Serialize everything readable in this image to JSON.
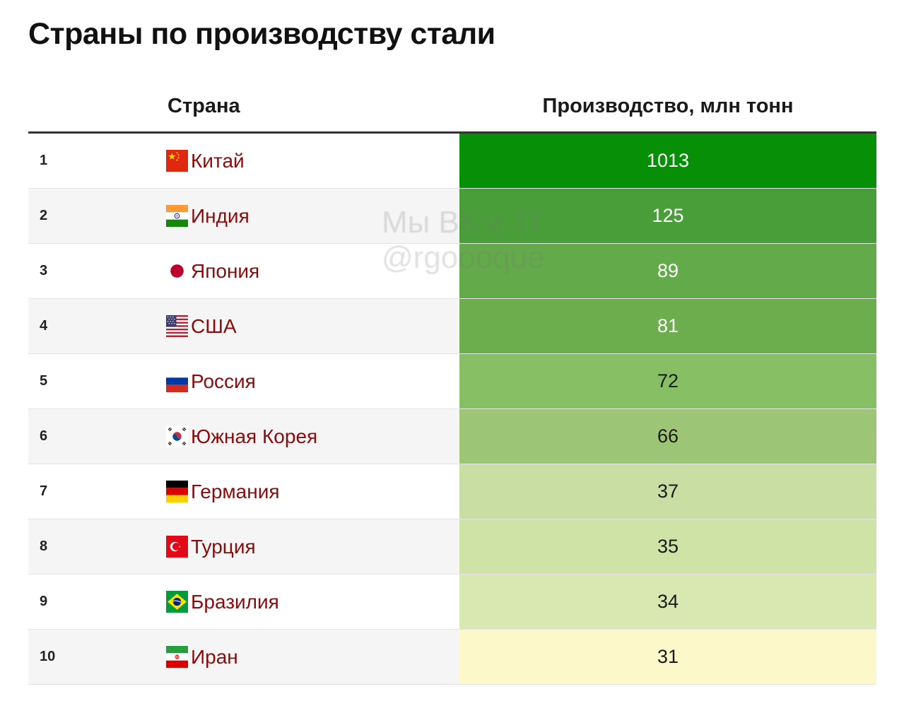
{
  "title": "Страны по производству стали",
  "watermark": {
    "line1": "Мы ВК и ТГ",
    "line2": "@rgoooque"
  },
  "chart_data": {
    "type": "table",
    "title": "Страны по производству стали",
    "columns": [
      "",
      "Страна",
      "Производство, млн тонн"
    ],
    "rows": [
      {
        "rank": "1",
        "country": "Китай",
        "flag": "china-flag-icon",
        "value": 1013,
        "display": "1013",
        "fill": "#078f07",
        "text_color": "#ffffff"
      },
      {
        "rank": "2",
        "country": "Индия",
        "flag": "india-flag-icon",
        "value": 125,
        "display": "125",
        "fill": "#4a9e3a",
        "text_color": "#ffffff"
      },
      {
        "rank": "3",
        "country": "Япония",
        "flag": "japan-flag-icon",
        "value": 89,
        "display": "89",
        "fill": "#63aa4a",
        "text_color": "#ffffff"
      },
      {
        "rank": "4",
        "country": "США",
        "flag": "usa-flag-icon",
        "value": 81,
        "display": "81",
        "fill": "#6cae4e",
        "text_color": "#ffffff"
      },
      {
        "rank": "5",
        "country": "Россия",
        "flag": "russia-flag-icon",
        "value": 72,
        "display": "72",
        "fill": "#87bf64",
        "text_color": "#1a1a1a"
      },
      {
        "rank": "6",
        "country": "Южная Корея",
        "flag": "south-korea-flag-icon",
        "value": 66,
        "display": "66",
        "fill": "#9cc675",
        "text_color": "#1a1a1a"
      },
      {
        "rank": "7",
        "country": "Германия",
        "flag": "germany-flag-icon",
        "value": 37,
        "display": "37",
        "fill": "#c8dea2",
        "text_color": "#1a1a1a"
      },
      {
        "rank": "8",
        "country": "Турция",
        "flag": "turkey-flag-icon",
        "value": 35,
        "display": "35",
        "fill": "#d0e3a7",
        "text_color": "#1a1a1a"
      },
      {
        "rank": "9",
        "country": "Бразилия",
        "flag": "brazil-flag-icon",
        "value": 34,
        "display": "34",
        "fill": "#d8e8b0",
        "text_color": "#1a1a1a"
      },
      {
        "rank": "10",
        "country": "Иран",
        "flag": "iran-flag-icon",
        "value": 31,
        "display": "31",
        "fill": "#fdf8c9",
        "text_color": "#1a1a1a"
      }
    ]
  }
}
